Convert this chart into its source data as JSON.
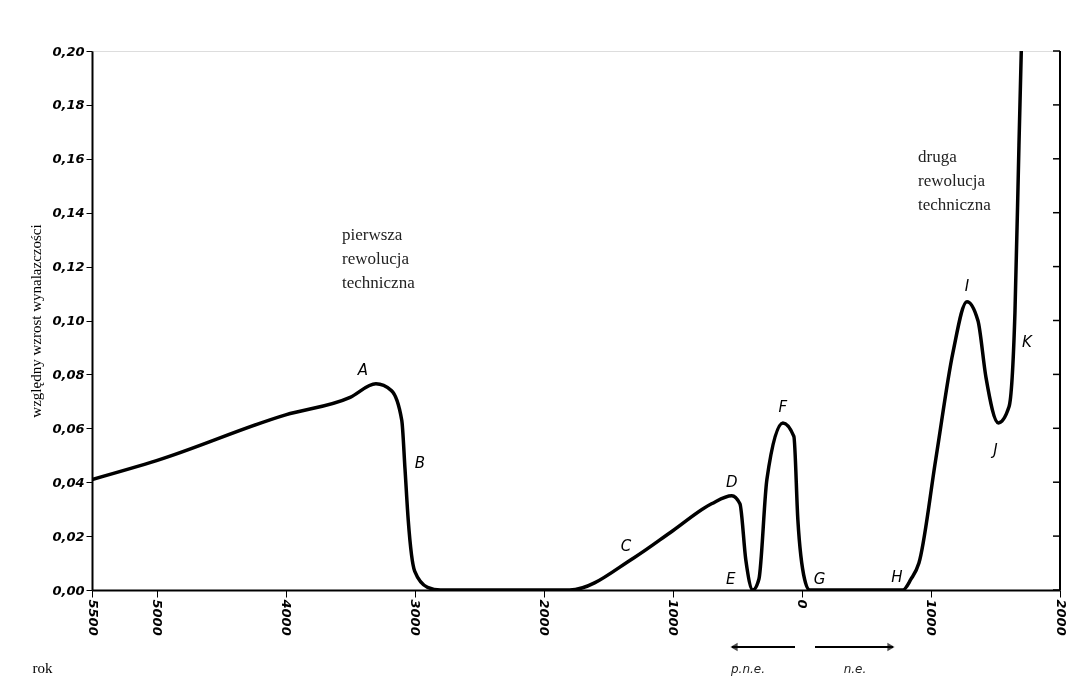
{
  "chart_data": {
    "type": "line",
    "xlabel": "rok",
    "ylabel": "względny wzrost wynalazczości",
    "x": [
      -5500,
      -5000,
      -4000,
      -3500,
      -3300,
      -3180,
      -3100,
      -3075,
      -3050,
      -3000,
      -2900,
      -2800,
      -1800,
      -1300,
      -1000,
      -700,
      -543,
      -480,
      -434,
      -380,
      -333,
      -271,
      -147,
      -62,
      -31,
      21,
      60,
      782,
      845,
      907,
      1039,
      1170,
      1279,
      1364,
      1426,
      1523,
      1605,
      1651,
      1682,
      1700
    ],
    "series": [
      {
        "color": "#000000",
        "values": [
          0.041,
          0.048,
          0.065,
          0.0715,
          0.0765,
          0.074,
          0.063,
          0.045,
          0.026,
          0.007,
          0.001,
          0,
          0,
          0.012,
          0.022,
          0.032,
          0.035,
          0.032,
          0.011,
          0,
          0.004,
          0.041,
          0.062,
          0.057,
          0.026,
          0.004,
          0,
          0,
          0.004,
          0.01,
          0.049,
          0.088,
          0.107,
          0.1,
          0.079,
          0.062,
          0.068,
          0.103,
          0.165,
          0.2
        ]
      }
    ],
    "xlim": [
      -5500,
      2000
    ],
    "xticks": [
      {
        "value": -5500,
        "label": "5500"
      },
      {
        "value": -5000,
        "label": "5000"
      },
      {
        "value": -4000,
        "label": "4000"
      },
      {
        "value": -3000,
        "label": "3000"
      },
      {
        "value": -2000,
        "label": "2000"
      },
      {
        "value": -1000,
        "label": "1000"
      },
      0,
      1000,
      2000
    ],
    "ylim": [
      0,
      0.2
    ],
    "yticks": [
      {
        "value": 0,
        "label": "0,00"
      },
      {
        "value": 0.02,
        "label": "0,02"
      },
      {
        "value": 0.04,
        "label": "0,04"
      },
      {
        "value": 0.06,
        "label": "0,06"
      },
      {
        "value": 0.08,
        "label": "0,08"
      },
      {
        "value": 0.1,
        "label": "0,10"
      },
      {
        "value": 0.12,
        "label": "0,12"
      },
      {
        "value": 0.14,
        "label": "0,14"
      },
      {
        "value": 0.16,
        "label": "0,16"
      },
      {
        "value": 0.18,
        "label": "0,18"
      },
      {
        "value": 0.2,
        "label": "0,20"
      }
    ],
    "grid": false,
    "marker": "none",
    "line_style": "solid",
    "annotations": [
      {
        "text": "A",
        "x": -3300,
        "y": 0.0765
      },
      {
        "text": "B",
        "x": -3075,
        "y": 0.045
      },
      {
        "text": "C",
        "x": -1300,
        "y": 0.012
      },
      {
        "text": "D",
        "x": -543,
        "y": 0.035
      },
      {
        "text": "E",
        "x": -380,
        "y": 0
      },
      {
        "text": "F",
        "x": -147,
        "y": 0.062
      },
      {
        "text": "G",
        "x": 60,
        "y": 0
      },
      {
        "text": "H",
        "x": 782,
        "y": 0
      },
      {
        "text": "I",
        "x": 1279,
        "y": 0.107
      },
      {
        "text": "J",
        "x": 1523,
        "y": 0.062
      },
      {
        "text": "K",
        "x": 1651,
        "y": 0.103
      },
      "pierwsza rewolucja techniczna",
      "druga rewolucja techniczna",
      "p.n.e.",
      "n.e."
    ]
  }
}
